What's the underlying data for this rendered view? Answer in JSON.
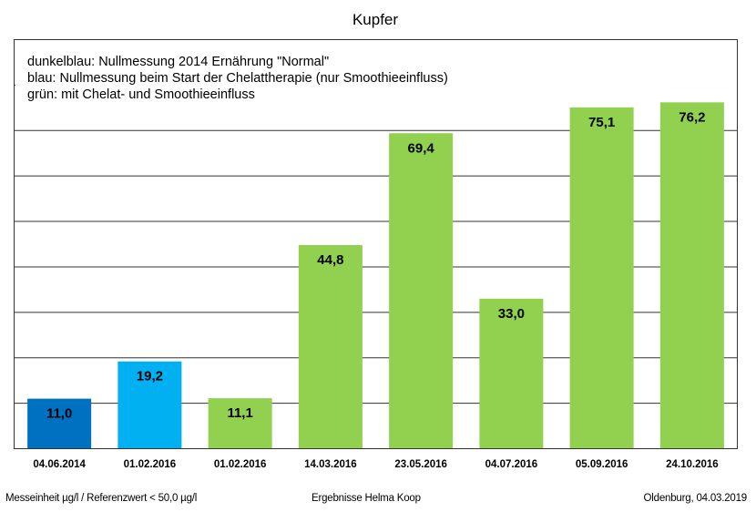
{
  "chart_data": {
    "type": "bar",
    "title": "Kupfer",
    "categories": [
      "04.06.2014",
      "01.02.2016",
      "01.02.2016",
      "14.03.2016",
      "23.05.2016",
      "04.07.2016",
      "05.09.2016",
      "24.10.2016"
    ],
    "values": [
      11.0,
      19.2,
      11.1,
      44.8,
      69.4,
      33.0,
      75.1,
      76.2
    ],
    "value_labels": [
      "11,0",
      "19,2",
      "11,1",
      "44,8",
      "69,4",
      "33,0",
      "75,1",
      "76,2"
    ],
    "bar_groups": [
      "dunkelblau",
      "blau",
      "grün",
      "grün",
      "grün",
      "grün",
      "grün",
      "grün"
    ],
    "colors": {
      "dunkelblau": "#0070c0",
      "blau": "#00b0f0",
      "grün": "#92d050"
    },
    "ylim": [
      0,
      90
    ],
    "ytick_step": 10,
    "grid": true,
    "xlabel": "",
    "ylabel": "",
    "legend_lines": [
      "dunkelblau: Nullmessung 2014 Ernährung \"Normal\"",
      "blau: Nullmessung beim Start der Chelattherapie (nur Smoothieeinfluss)",
      "grün: mit Chelat- und Smoothieeinfluss"
    ],
    "legend_placement": "top-left"
  },
  "footer": {
    "left": "Messeinheit µg/l / Referenzwert < 50,0 µg/l",
    "center": "Ergebnisse Helma Koop",
    "right": "Oldenburg, 04.03.2019"
  }
}
